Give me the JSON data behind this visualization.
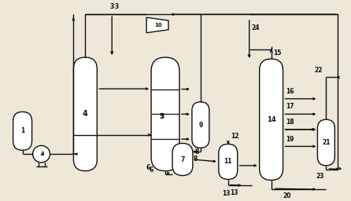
{
  "bg_color": "#ede8d8",
  "line_color": "#111111",
  "lw": 1.0,
  "fig_width": 4.46,
  "fig_height": 2.56,
  "dpi": 100
}
